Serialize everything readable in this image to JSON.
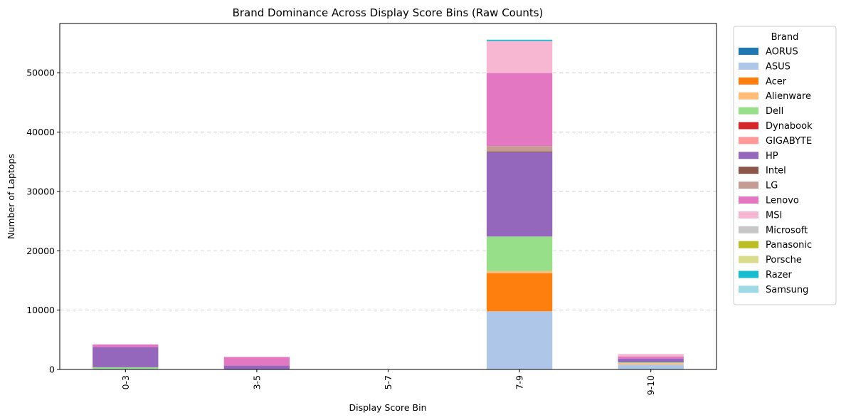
{
  "chart_data": {
    "type": "bar",
    "stacked": true,
    "title": "Brand Dominance Across Display Score Bins (Raw Counts)",
    "xlabel": "Display Score Bin",
    "ylabel": "Number of Laptops",
    "ylim": [
      0,
      58300
    ],
    "yticks": [
      0,
      10000,
      20000,
      30000,
      40000,
      50000
    ],
    "grid": "y-dashed",
    "categories": [
      "0-3",
      "3-5",
      "5-7",
      "7-9",
      "9-10"
    ],
    "legend": {
      "title": "Brand",
      "placement": "outside-right"
    },
    "series": [
      {
        "name": "AORUS",
        "color": "#1f77b4",
        "values": [
          0,
          0,
          0,
          0,
          0
        ]
      },
      {
        "name": "ASUS",
        "color": "#aec7e8",
        "values": [
          120,
          50,
          0,
          9800,
          800
        ]
      },
      {
        "name": "Acer",
        "color": "#ff7f0e",
        "values": [
          0,
          0,
          0,
          6400,
          0
        ]
      },
      {
        "name": "Alienware",
        "color": "#ffbb78",
        "values": [
          0,
          0,
          0,
          400,
          250
        ]
      },
      {
        "name": "Dell",
        "color": "#98df8a",
        "values": [
          250,
          0,
          0,
          5800,
          150
        ]
      },
      {
        "name": "Dynabook",
        "color": "#d62728",
        "values": [
          0,
          0,
          0,
          0,
          0
        ]
      },
      {
        "name": "GIGABYTE",
        "color": "#ff9896",
        "values": [
          0,
          0,
          0,
          0,
          0
        ]
      },
      {
        "name": "HP",
        "color": "#9467bd",
        "values": [
          3400,
          600,
          0,
          14200,
          600
        ]
      },
      {
        "name": "Intel",
        "color": "#8c564b",
        "values": [
          0,
          0,
          0,
          150,
          0
        ]
      },
      {
        "name": "LG",
        "color": "#c49c94",
        "values": [
          0,
          0,
          0,
          900,
          0
        ]
      },
      {
        "name": "Lenovo",
        "color": "#e377c2",
        "values": [
          450,
          1450,
          0,
          12300,
          400
        ]
      },
      {
        "name": "MSI",
        "color": "#f7b6d2",
        "values": [
          0,
          0,
          0,
          5400,
          400
        ]
      },
      {
        "name": "Microsoft",
        "color": "#c7c7c7",
        "values": [
          0,
          0,
          0,
          0,
          0
        ]
      },
      {
        "name": "Panasonic",
        "color": "#bcbd22",
        "values": [
          0,
          0,
          0,
          0,
          0
        ]
      },
      {
        "name": "Porsche",
        "color": "#dbdb8d",
        "values": [
          0,
          0,
          0,
          0,
          0
        ]
      },
      {
        "name": "Razer",
        "color": "#17becf",
        "values": [
          0,
          0,
          0,
          200,
          0
        ]
      },
      {
        "name": "Samsung",
        "color": "#9edae5",
        "values": [
          0,
          0,
          0,
          50,
          0
        ]
      }
    ]
  }
}
